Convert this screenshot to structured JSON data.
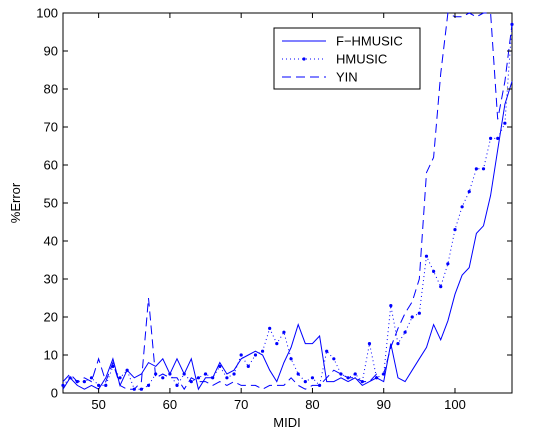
{
  "chart_data": {
    "type": "line",
    "title": "",
    "xlabel": "MIDI",
    "ylabel": "%Error",
    "xlim": [
      45,
      108
    ],
    "ylim": [
      0,
      100
    ],
    "xticks": [
      50,
      60,
      70,
      80,
      90,
      100
    ],
    "yticks": [
      0,
      10,
      20,
      30,
      40,
      50,
      60,
      70,
      80,
      90,
      100
    ],
    "grid": false,
    "legend_position": "top-center",
    "color": "#0000ff",
    "x": [
      45,
      46,
      47,
      48,
      49,
      50,
      51,
      52,
      53,
      54,
      55,
      56,
      57,
      58,
      59,
      60,
      61,
      62,
      63,
      64,
      65,
      66,
      67,
      68,
      69,
      70,
      71,
      72,
      73,
      74,
      75,
      76,
      77,
      78,
      79,
      80,
      81,
      82,
      83,
      84,
      85,
      86,
      87,
      88,
      89,
      90,
      91,
      92,
      93,
      94,
      95,
      96,
      97,
      98,
      99,
      100,
      101,
      102,
      103,
      104,
      105,
      106,
      107,
      108
    ],
    "series": [
      {
        "name": "F−HMUSIC",
        "style": "solid",
        "values": [
          1,
          4,
          2,
          1,
          2,
          1,
          4,
          9,
          2,
          6,
          4,
          5,
          8,
          7,
          9,
          5,
          9,
          5,
          9,
          1,
          4,
          4,
          8,
          5,
          6,
          9,
          10,
          11,
          10,
          6,
          3,
          8,
          12,
          18,
          13,
          13,
          15,
          3,
          3,
          4,
          3,
          4,
          2,
          3,
          4,
          3,
          13,
          4,
          3,
          6,
          9,
          12,
          18,
          14,
          19,
          26,
          31,
          33,
          42,
          44,
          52,
          64,
          76,
          82
        ]
      },
      {
        "name": "HMUSIC",
        "style": "dotted-markers",
        "values": [
          2,
          4,
          3,
          3,
          4,
          2,
          2,
          7,
          4,
          6,
          1,
          1,
          2,
          5,
          4,
          5,
          2,
          5,
          3,
          4,
          5,
          4,
          7,
          4,
          5,
          10,
          7,
          10,
          11,
          17,
          13,
          16,
          9,
          5,
          3,
          4,
          2,
          11,
          9,
          5,
          4,
          5,
          3,
          13,
          4,
          5,
          23,
          13,
          16,
          20,
          21,
          36,
          32,
          28,
          34,
          43,
          49,
          53,
          59,
          59,
          67,
          67,
          71,
          97
        ]
      },
      {
        "name": "YIN",
        "style": "dashed",
        "values": [
          3,
          5,
          3,
          4,
          3,
          9,
          3,
          8,
          2,
          1,
          1,
          3,
          25,
          4,
          5,
          4,
          4,
          1,
          4,
          3,
          3,
          2,
          3,
          2,
          3,
          2,
          2,
          2,
          1,
          2,
          2,
          2,
          4,
          2,
          1,
          2,
          2,
          4,
          6,
          5,
          4,
          4,
          3,
          3,
          5,
          5,
          12,
          17,
          21,
          24,
          30,
          58,
          62,
          84,
          100,
          99,
          99,
          100,
          99,
          100,
          100,
          72,
          82,
          97
        ]
      }
    ]
  }
}
